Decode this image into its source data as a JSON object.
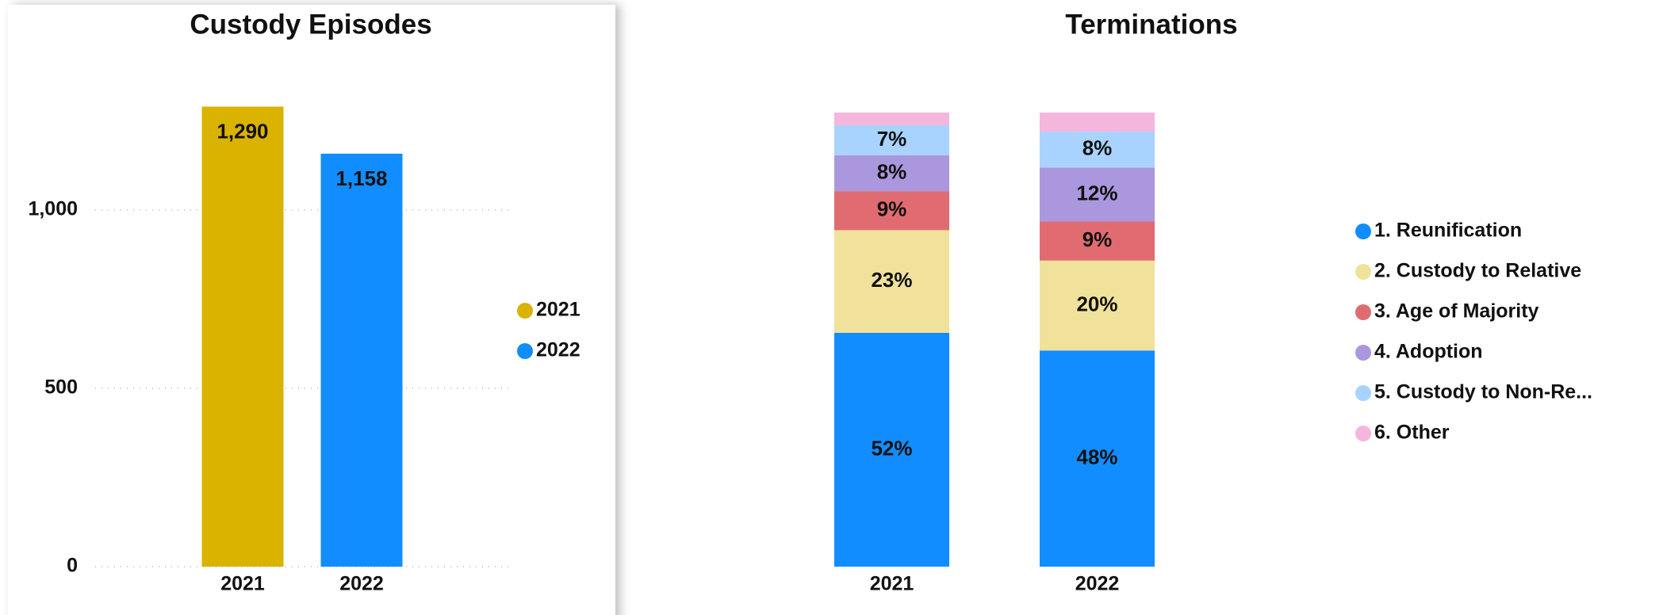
{
  "chart_data": [
    {
      "type": "bar",
      "title": "Custody Episodes",
      "categories": [
        "2021",
        "2022"
      ],
      "values": [
        1290,
        1158
      ],
      "value_labels": [
        "1,290",
        "1,158"
      ],
      "colors": [
        "#d9b300",
        "#118dff"
      ],
      "ylim": [
        0,
        1400
      ],
      "yticks": [
        0,
        500,
        {
          "value": 1000,
          "label": "1,000"
        }
      ],
      "grid": true,
      "legend": "right"
    },
    {
      "type": "bar",
      "stacked": true,
      "title": "Terminations",
      "categories": [
        "2021",
        "2022"
      ],
      "series": [
        {
          "name": "1. Reunification",
          "color": "#118dff",
          "values": [
            51.5,
            47.6
          ],
          "value_labels": [
            "52%",
            "48%"
          ]
        },
        {
          "name": "2. Custody to Relative",
          "color": "#f1e29b",
          "values": [
            22.6,
            19.8
          ],
          "value_labels": [
            "23%",
            "20%"
          ]
        },
        {
          "name": "3. Age of Majority",
          "color": "#e06c72",
          "values": [
            8.6,
            8.6
          ],
          "value_labels": [
            "9%",
            "9%"
          ]
        },
        {
          "name": "4. Adoption",
          "color": "#ab97dd",
          "values": [
            7.9,
            11.9
          ],
          "value_labels": [
            "8%",
            "12%"
          ]
        },
        {
          "name": "5. Custody to Non-Re...",
          "color": "#a9d3ff",
          "values": [
            6.6,
            7.9
          ],
          "value_labels": [
            "7%",
            "8%"
          ]
        },
        {
          "name": "6. Other",
          "color": "#f4b6dc",
          "values": [
            2.8,
            4.2
          ],
          "value_labels": [
            null,
            null
          ]
        }
      ],
      "ylim": [
        0,
        100
      ],
      "grid": false,
      "legend": "right"
    }
  ]
}
